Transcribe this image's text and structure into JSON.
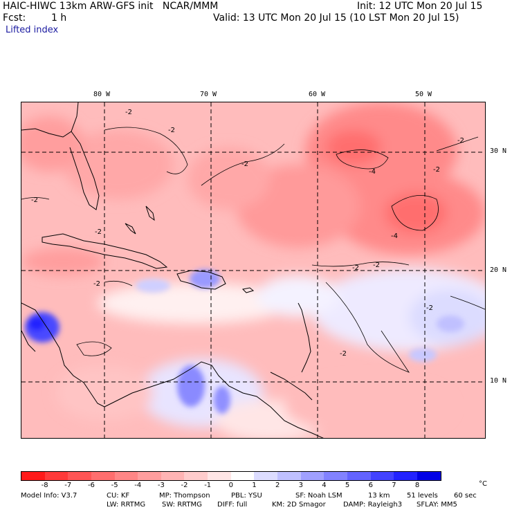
{
  "header": {
    "model": "HAIC-HIWC 13km ARW-GFS init   NCAR/MMM",
    "init": "Init: 12 UTC Mon 20 Jul 15",
    "fcst_label": "Fcst:",
    "fcst_value": "1 h",
    "valid": "Valid: 13 UTC Mon 20 Jul 15 (10 LST Mon 20 Jul 15)",
    "field": "Lifted index"
  },
  "map": {
    "lon_labels": [
      "80 W",
      "70 W",
      "60 W",
      "50 W"
    ],
    "lat_labels": [
      "30 N",
      "20 N",
      "10 N"
    ],
    "contour_labels": [
      "-2",
      "-2",
      "-2",
      "-2",
      "-2",
      "-4",
      "-4",
      "-2",
      "-2",
      "-2",
      "-2",
      "-2",
      "-2",
      "-2"
    ]
  },
  "colorbar": {
    "units": "°C",
    "tick_labels": [
      "-8",
      "-7",
      "-6",
      "-5",
      "-4",
      "-3",
      "-2",
      "-1",
      "0",
      "1",
      "2",
      "3",
      "4",
      "5",
      "6",
      "7",
      "8"
    ],
    "colors": [
      "#ff1a1a",
      "#ff3a3a",
      "#ff5555",
      "#ff6e6e",
      "#ff8686",
      "#ff9e9e",
      "#ffb4b4",
      "#ffcccc",
      "#ffe6e6",
      "#ffffff",
      "#dcdcff",
      "#bfc0ff",
      "#a0a0ff",
      "#8282ff",
      "#6363ff",
      "#4242ff",
      "#2222ff",
      "#0000e6"
    ]
  },
  "model_info": {
    "line1": [
      "Model Info: V3.7",
      "CU: KF",
      "MP: Thompson",
      "PBL: YSU",
      "SF: Noah LSM",
      "13 km",
      "51 levels",
      "60 sec"
    ],
    "line2": [
      "LW: RRTMG",
      "SW: RRTMG",
      "DIFF: full",
      "KM: 2D Smagor",
      "DAMP: Rayleigh3",
      "SFLAY: MM5"
    ]
  }
}
